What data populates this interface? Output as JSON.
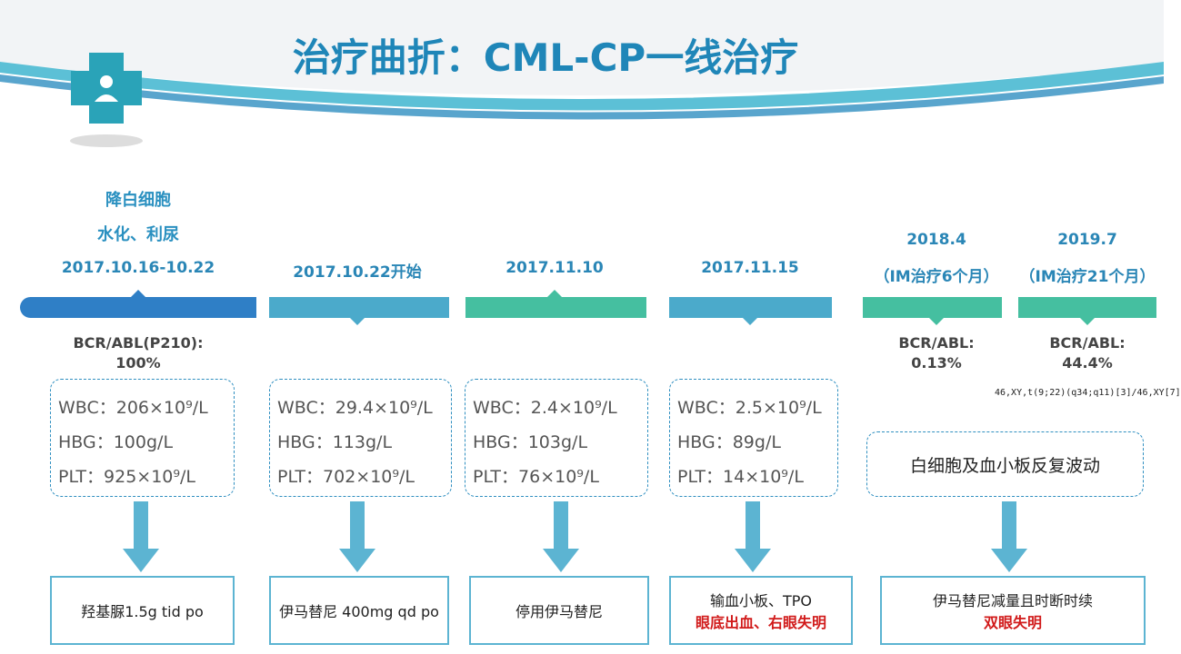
{
  "title": "治疗曲折：CML-CP一线治疗",
  "timeline": [
    {
      "notes": [
        "降白细胞",
        "水化、利尿"
      ],
      "date": "2017.10.16-10.22",
      "bcr_abl": [
        "BCR/ABL(P210):",
        "100%"
      ],
      "labs": [
        "WBC：206×10⁹/L",
        "HBG：100g/L",
        "PLT：925×10⁹/L"
      ],
      "treatment": [
        "羟基脲1.5g tid po"
      ]
    },
    {
      "date": "2017.10.22开始",
      "labs": [
        "WBC：29.4×10⁹/L",
        "HBG：113g/L",
        "PLT：702×10⁹/L"
      ],
      "treatment": [
        "伊马替尼 400mg qd po"
      ]
    },
    {
      "date": "2017.11.10",
      "labs": [
        "WBC：2.4×10⁹/L",
        "HBG：103g/L",
        "PLT：76×10⁹/L"
      ],
      "treatment": [
        "停用伊马替尼"
      ]
    },
    {
      "date": "2017.11.15",
      "labs": [
        "WBC：2.5×10⁹/L",
        "HBG：89g/L",
        "PLT：14×10⁹/L"
      ],
      "treatment": [
        "输血小板、TPO"
      ],
      "alert": "眼底出血、右眼失明"
    },
    {
      "date": "2018.4",
      "duration": "（IM治疗6个月）",
      "bcr_abl": [
        "BCR/ABL:",
        "0.13%"
      ]
    },
    {
      "date": "2019.7",
      "duration": "（IM治疗21个月）",
      "bcr_abl": [
        "BCR/ABL:",
        "44.4%"
      ],
      "karyotype": "46,XY,t(9;22)(q34;q11)[3]/46,XY[7]"
    }
  ],
  "late_phase": {
    "note": "白细胞及血小板反复波动",
    "treatment": "伊马替尼减量且时断时续",
    "alert": "双眼失明"
  }
}
